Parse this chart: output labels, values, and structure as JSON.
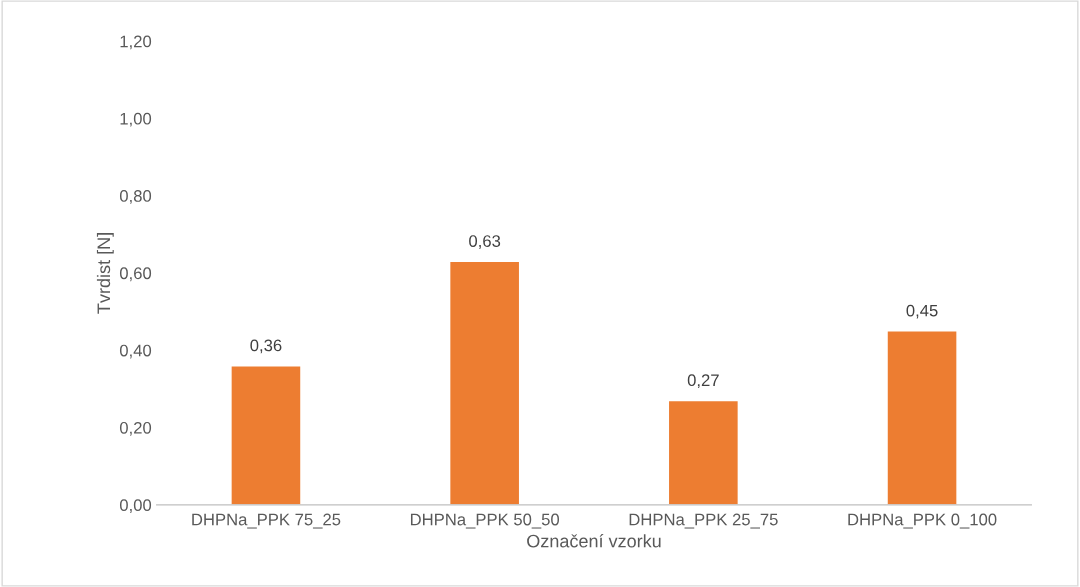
{
  "chart_data": {
    "type": "bar",
    "xlabel": "Označení vzorku",
    "ylabel": "Tvrdist [N]",
    "categories": [
      "DHPNa_PPK 75_25",
      "DHPNa_PPK 50_50",
      "DHPNa_PPK 25_75",
      "DHPNa_PPK 0_100"
    ],
    "values": [
      0.36,
      0.63,
      0.27,
      0.45
    ],
    "value_labels": [
      "0,36",
      "0,63",
      "0,27",
      "0,45"
    ],
    "color": "#ed7d31",
    "ylim": [
      0,
      1.2
    ],
    "yticks": [
      {
        "value": 0,
        "label": "0,00"
      },
      {
        "value": 0.2,
        "label": "0,20"
      },
      {
        "value": 0.4,
        "label": "0,40"
      },
      {
        "value": 0.6,
        "label": "0,60"
      },
      {
        "value": 0.8,
        "label": "0,80"
      },
      {
        "value": 1.0,
        "label": "1,00"
      },
      {
        "value": 1.2,
        "label": "1,20"
      }
    ],
    "grid": false,
    "legend": false
  }
}
